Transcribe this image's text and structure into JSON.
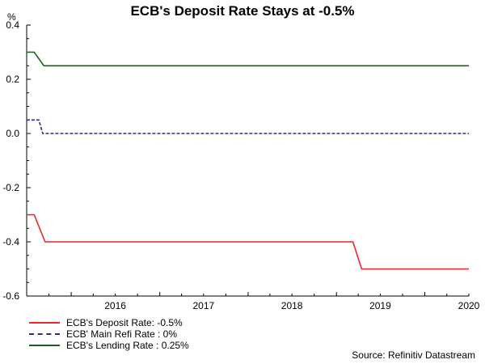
{
  "chart_data": {
    "type": "line",
    "title": "ECB's Deposit Rate Stays at -0.5%",
    "unit": "%",
    "xlabel": "",
    "ylabel": "",
    "ylim": [
      -0.6,
      0.4
    ],
    "yticks": [
      -0.6,
      -0.4,
      -0.2,
      0.0,
      0.2,
      0.4
    ],
    "ytick_labels": [
      "-0.6",
      "-0.4",
      "-0.2",
      "0.0",
      "0.2",
      "0.4"
    ],
    "xlim": [
      "2015-07-01",
      "2020-07-01"
    ],
    "xtick_labels": [
      "2016",
      "2017",
      "2018",
      "2019",
      "2020"
    ],
    "series": [
      {
        "name": "ECB's Deposit Rate: -0.5%",
        "color": "#e8262b",
        "style": "solid",
        "points": [
          {
            "x": "2015-07-01",
            "y": -0.3
          },
          {
            "x": "2015-08-01",
            "y": -0.3
          },
          {
            "x": "2015-09-15",
            "y": -0.4
          },
          {
            "x": "2019-03-10",
            "y": -0.4
          },
          {
            "x": "2019-04-15",
            "y": -0.5
          },
          {
            "x": "2020-07-01",
            "y": -0.5
          }
        ]
      },
      {
        "name": "ECB' Main Refi Rate : 0%",
        "color": "#2b2f88",
        "style": "dashed",
        "points": [
          {
            "x": "2015-07-01",
            "y": 0.05
          },
          {
            "x": "2015-08-20",
            "y": 0.05
          },
          {
            "x": "2015-09-05",
            "y": 0.0
          },
          {
            "x": "2020-07-01",
            "y": 0.0
          }
        ]
      },
      {
        "name": "ECB's Lending Rate : 0.25%",
        "color": "#1f5d1f",
        "style": "solid",
        "points": [
          {
            "x": "2015-07-01",
            "y": 0.3
          },
          {
            "x": "2015-08-01",
            "y": 0.3
          },
          {
            "x": "2015-09-10",
            "y": 0.25
          },
          {
            "x": "2020-07-01",
            "y": 0.25
          }
        ]
      }
    ],
    "grid": false,
    "legend_position": "bottom-left"
  },
  "source": "Source: Refinitiv Datastream"
}
